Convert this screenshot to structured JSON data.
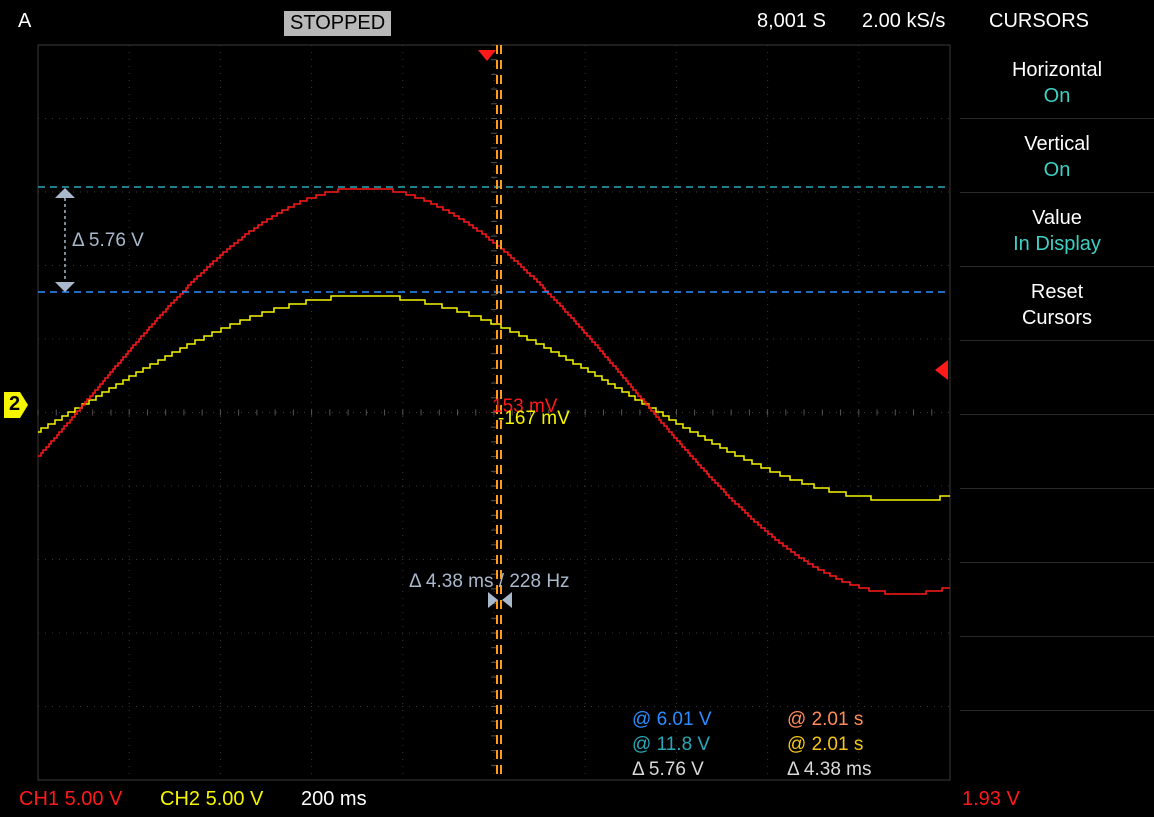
{
  "topbar": {
    "trigger_mode": "A",
    "status": "STOPPED",
    "sample_count": "8,001 S",
    "sample_rate": "2.00 kS/s",
    "menu_title": "CURSORS"
  },
  "menu": {
    "items": [
      {
        "title": "Horizontal",
        "value": "On"
      },
      {
        "title": "Vertical",
        "value": "On"
      },
      {
        "title": "Value",
        "value": "In Display"
      },
      {
        "title": "Reset",
        "value": "Cursors"
      }
    ]
  },
  "waveform": {
    "ch2_marker": "2",
    "vertical_delta_label": "Δ 5.76 V",
    "horizontal_delta_label": "Δ 4.38 ms / 228 Hz",
    "ch1_cursor_value": "153 mV",
    "ch2_cursor_value": "-167 mV"
  },
  "readout": {
    "cursor_a_voltage": "@ 6.01 V",
    "cursor_b_voltage": "@ 11.8 V",
    "voltage_delta": "Δ 5.76 V",
    "cursor_a_time": "@ 2.01 s",
    "cursor_b_time": "@ 2.01 s",
    "time_delta": "Δ 4.38 ms"
  },
  "bottombar": {
    "ch1_scale": "CH1 5.00 V",
    "ch2_scale": "CH2 5.00 V",
    "timebase": "200 ms",
    "trigger_level": "1.93 V"
  },
  "colors": {
    "ch1": "#ff1a1a",
    "ch2": "#f5f500",
    "cursor_h1": "#2aa7b8",
    "cursor_h2": "#2d8cff",
    "cursor_v": "#ff9a1a",
    "delta": "#a9b8cc"
  }
}
